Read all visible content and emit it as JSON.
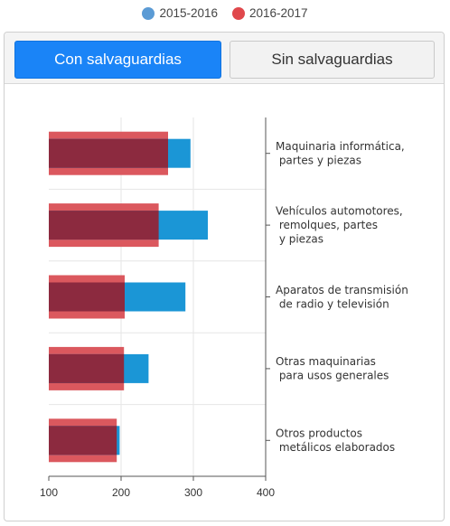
{
  "legend": [
    {
      "label": "2015-2016",
      "color": "#5b9bd5"
    },
    {
      "label": "2016-2017",
      "color": "#e0484c"
    }
  ],
  "tabs": [
    {
      "label": "Con salvaguardias",
      "active": true
    },
    {
      "label": "Sin salvaguardias",
      "active": false
    }
  ],
  "chart_data": {
    "type": "bar",
    "orientation": "horizontal",
    "categories": [
      [
        "Maquinaria informática,",
        " partes y piezas"
      ],
      [
        "Vehículos automotores,",
        " remolques, partes",
        " y piezas"
      ],
      [
        "Aparatos de transmisión",
        " de radio y televisión"
      ],
      [
        "Otras maquinarias",
        " para usos generales"
      ],
      [
        "Otros productos",
        " metálicos elaborados"
      ]
    ],
    "series": [
      {
        "name": "2015-2016",
        "color": "#1b96d6",
        "values": [
          296,
          320,
          289,
          238,
          198
        ]
      },
      {
        "name": "2016-2017",
        "color": "#d94f55",
        "values": [
          265,
          252,
          205,
          204,
          194
        ]
      }
    ],
    "xlim": [
      100,
      400
    ],
    "xticks": [
      100,
      200,
      300,
      400
    ],
    "grid": true
  }
}
